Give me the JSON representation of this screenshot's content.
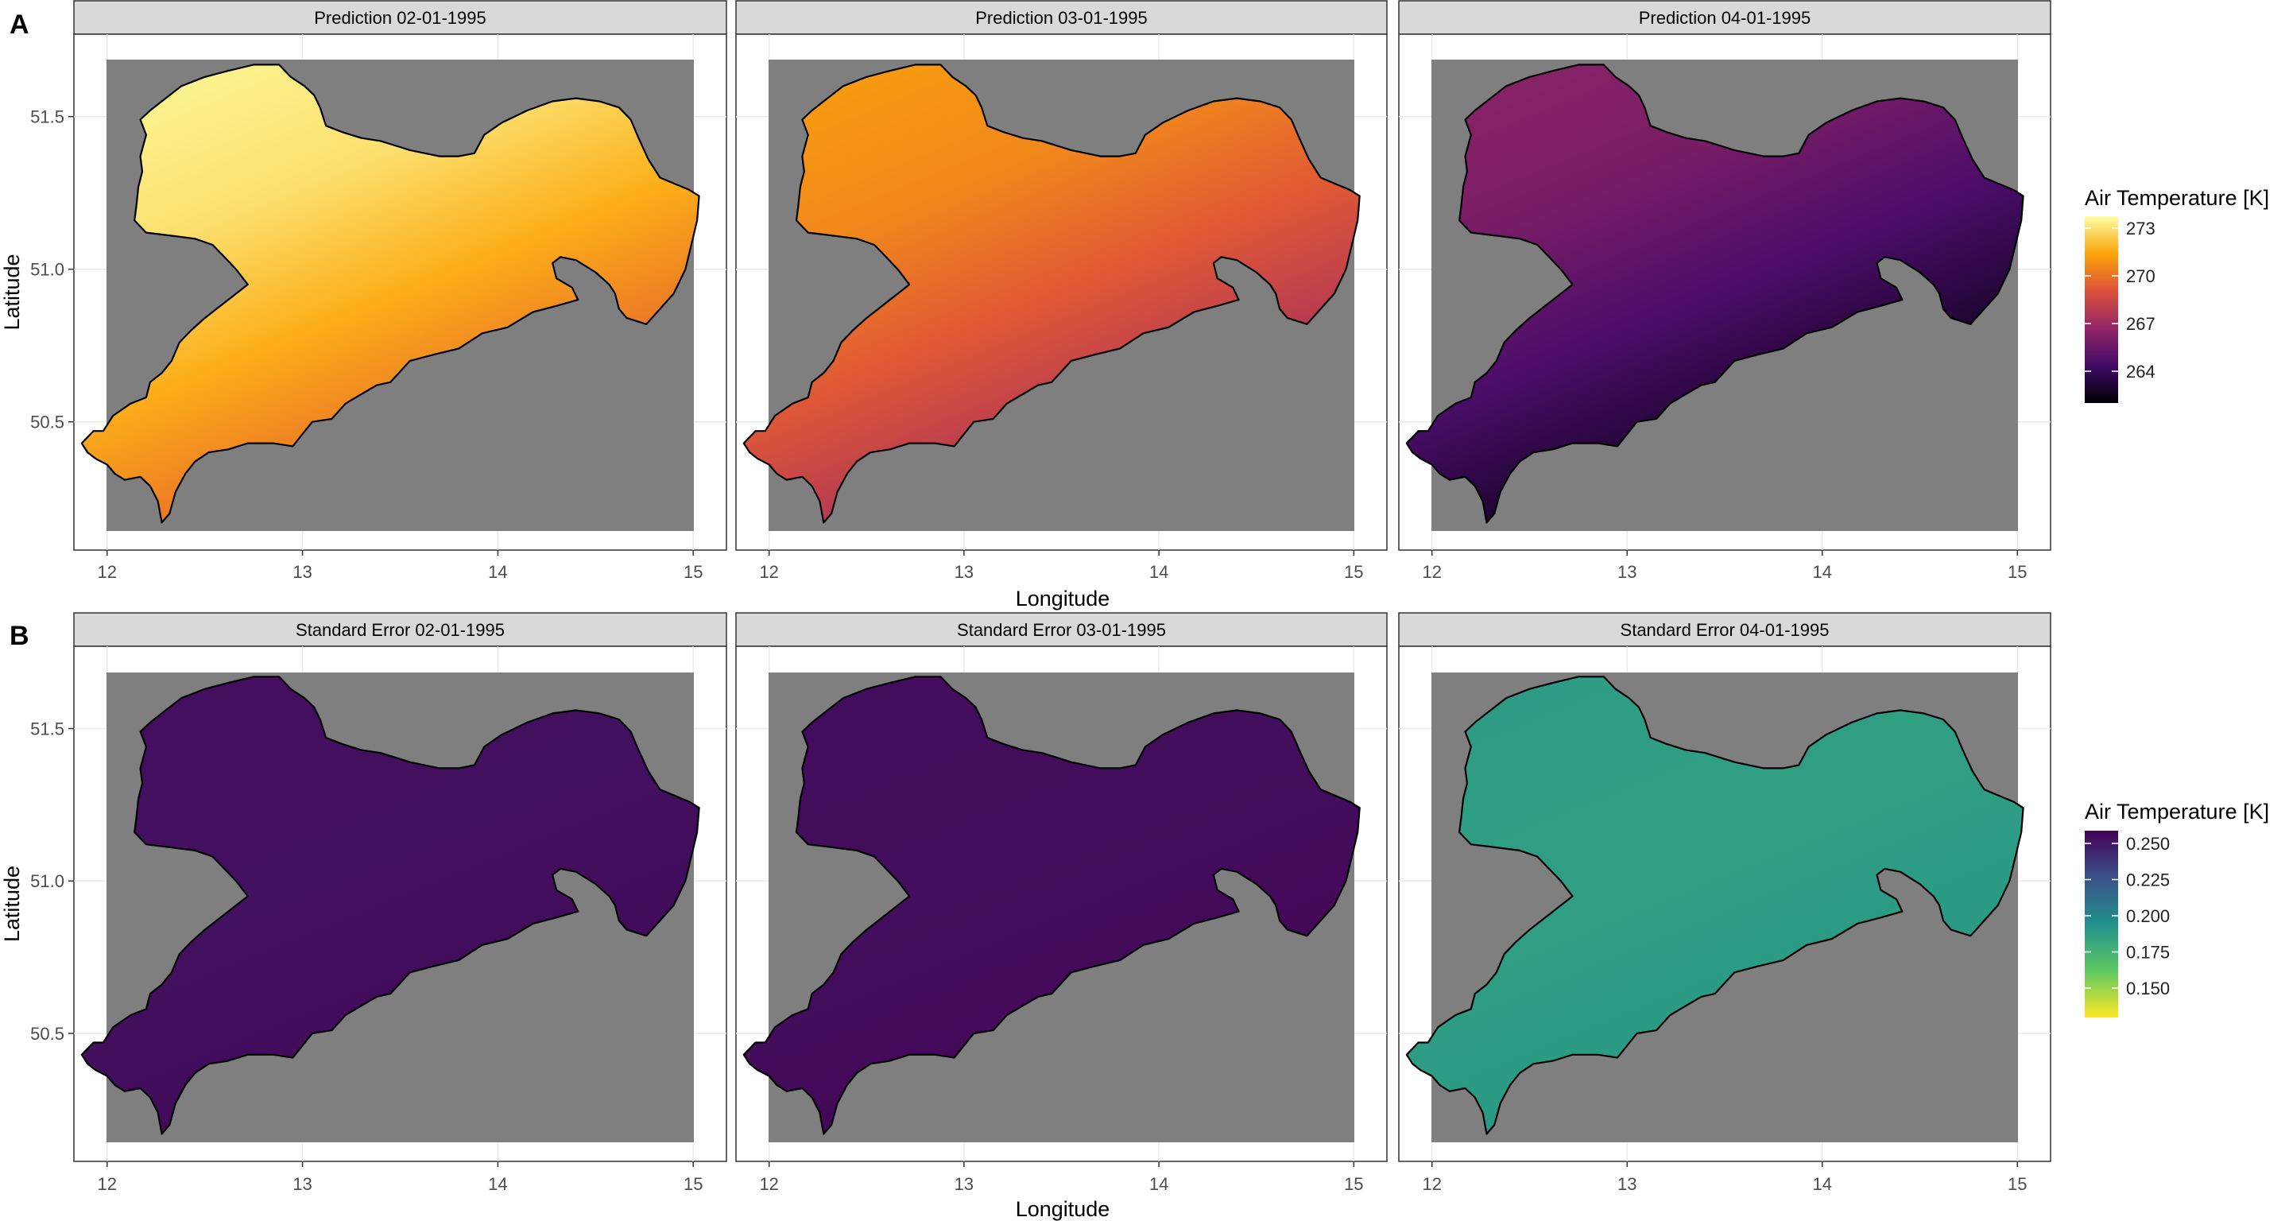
{
  "rows": [
    {
      "letter": "A",
      "ylabel": "Latitude",
      "xlabel": "Longitude",
      "panels": [
        {
          "title": "Prediction 02-01-1995",
          "variant": "pred",
          "level": 0.9
        },
        {
          "title": "Prediction 03-01-1995",
          "variant": "pred",
          "level": 0.7
        },
        {
          "title": "Prediction 04-01-1995",
          "variant": "pred",
          "level": 0.3
        }
      ],
      "legend": {
        "title": "Air Temperature [K]",
        "palette": "inferno",
        "ticks": [
          "273",
          "270",
          "267",
          "264"
        ]
      }
    },
    {
      "letter": "B",
      "ylabel": "Latitude",
      "xlabel": "Longitude",
      "panels": [
        {
          "title": "Standard Error 02-01-1995",
          "variant": "se",
          "level": 0.96
        },
        {
          "title": "Standard Error 03-01-1995",
          "variant": "se",
          "level": 0.97
        },
        {
          "title": "Standard Error 04-01-1995",
          "variant": "se",
          "level": 0.45
        }
      ],
      "legend": {
        "title": "Air Temperature [K]",
        "palette": "viridis",
        "ticks": [
          "0.250",
          "0.225",
          "0.200",
          "0.175",
          "0.150"
        ]
      }
    }
  ],
  "axes": {
    "x_ticks": [
      "12",
      "13",
      "14",
      "15"
    ],
    "y_ticks": [
      "51.5",
      "51.0",
      "50.5"
    ]
  },
  "colors": {
    "ocean": "#7f7f7f",
    "strip": "#d9d9d9",
    "inferno": [
      "#000004",
      "#420a68",
      "#932667",
      "#dd513a",
      "#fca50a",
      "#fcffa4"
    ],
    "viridis": [
      "#fde725",
      "#5ec962",
      "#21918c",
      "#3b528b",
      "#440154"
    ]
  }
}
